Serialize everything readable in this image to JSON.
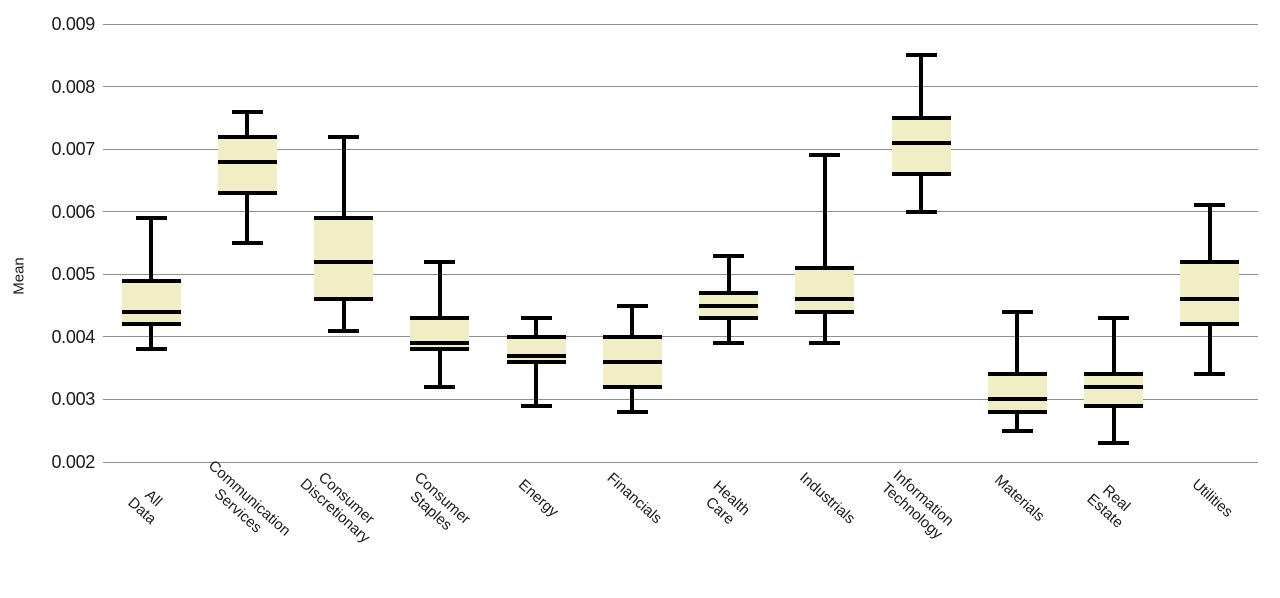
{
  "chart_data": {
    "type": "boxplot",
    "title": "",
    "xlabel": "",
    "ylabel": "Mean",
    "ylim": [
      0.002,
      0.009
    ],
    "yticks": [
      0.009,
      0.008,
      0.007,
      0.006,
      0.005,
      0.004,
      0.003,
      0.002
    ],
    "ytick_format_decimals": 3,
    "grid": true,
    "legend": "none",
    "categories": [
      "All Data",
      "Communication Services",
      "Consumer Discretionary",
      "Consumer Staples",
      "Energy",
      "Financials",
      "Health Care",
      "Industrials",
      "Information Technology",
      "Materials",
      "Real Estate",
      "Utilities"
    ],
    "category_labels": [
      "All Data",
      "Communication\nServices",
      "Consumer\nDiscretionary",
      "Consumer Staples",
      "Energy",
      "Financials",
      "Health Care",
      "Industrials",
      "Information\nTechnology",
      "Materials",
      "Real Estate",
      "Utilities"
    ],
    "series": [
      {
        "category": "All Data",
        "whisker_low": 0.0038,
        "q1": 0.0042,
        "median": 0.0044,
        "q3": 0.0049,
        "whisker_high": 0.0059
      },
      {
        "category": "Communication Services",
        "whisker_low": 0.0055,
        "q1": 0.0063,
        "median": 0.0068,
        "q3": 0.0072,
        "whisker_high": 0.0076
      },
      {
        "category": "Consumer Discretionary",
        "whisker_low": 0.0041,
        "q1": 0.0046,
        "median": 0.0052,
        "q3": 0.0059,
        "whisker_high": 0.0072
      },
      {
        "category": "Consumer Staples",
        "whisker_low": 0.0032,
        "q1": 0.0038,
        "median": 0.0039,
        "q3": 0.0043,
        "whisker_high": 0.0052
      },
      {
        "category": "Energy",
        "whisker_low": 0.0029,
        "q1": 0.0036,
        "median": 0.0037,
        "q3": 0.004,
        "whisker_high": 0.0043
      },
      {
        "category": "Financials",
        "whisker_low": 0.0028,
        "q1": 0.0032,
        "median": 0.0036,
        "q3": 0.004,
        "whisker_high": 0.0045
      },
      {
        "category": "Health Care",
        "whisker_low": 0.0039,
        "q1": 0.0043,
        "median": 0.0045,
        "q3": 0.0047,
        "whisker_high": 0.0053
      },
      {
        "category": "Industrials",
        "whisker_low": 0.0039,
        "q1": 0.0044,
        "median": 0.0046,
        "q3": 0.0051,
        "whisker_high": 0.0069
      },
      {
        "category": "Information Technology",
        "whisker_low": 0.006,
        "q1": 0.0066,
        "median": 0.0071,
        "q3": 0.0075,
        "whisker_high": 0.0085
      },
      {
        "category": "Materials",
        "whisker_low": 0.0025,
        "q1": 0.0028,
        "median": 0.003,
        "q3": 0.0034,
        "whisker_high": 0.0044
      },
      {
        "category": "Real Estate",
        "whisker_low": 0.0023,
        "q1": 0.0029,
        "median": 0.0032,
        "q3": 0.0034,
        "whisker_high": 0.0043
      },
      {
        "category": "Utilities",
        "whisker_low": 0.0034,
        "q1": 0.0042,
        "median": 0.0046,
        "q3": 0.0052,
        "whisker_high": 0.0061
      }
    ],
    "colors": {
      "box_fill": "#f1eec6",
      "box_line": "#000000",
      "grid_line": "#8f8f8f",
      "text": "#1a1a1a",
      "background": "#ffffff"
    }
  }
}
